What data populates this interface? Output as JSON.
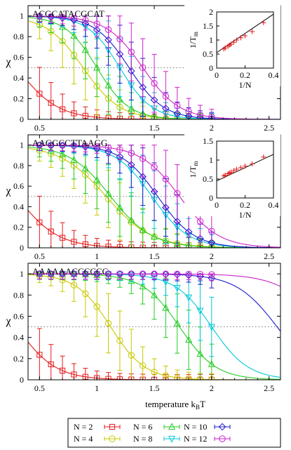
{
  "chart_data": [
    {
      "type": "line",
      "sequence": "ACGCATACGCAT",
      "ylabel": "χ",
      "xlim": [
        0.4,
        2.6
      ],
      "ylim": [
        0,
        1.1
      ],
      "xticks": [
        "0.5",
        "1",
        "1.5",
        "2",
        "2.5"
      ],
      "yticks": [
        "0",
        "0.2",
        "0.4",
        "0.6",
        "0.8",
        "1"
      ],
      "reference_line_y": 0.5,
      "series": [
        {
          "name": "N = 2",
          "Tm": 0.3,
          "width": 0.18
        },
        {
          "name": "N = 4",
          "Tm": 0.88,
          "width": 0.16
        },
        {
          "name": "N = 6",
          "Tm": 1.0,
          "width": 0.14
        },
        {
          "name": "N = 8",
          "Tm": 1.2,
          "width": 0.14
        },
        {
          "name": "N = 10",
          "Tm": 1.28,
          "width": 0.15
        },
        {
          "name": "N = 12",
          "Tm": 1.4,
          "width": 0.16
        }
      ],
      "inset": {
        "type": "scatter",
        "xlabel": "1/N",
        "ylabel": "1/T",
        "ylabel_sub": "m",
        "xlim": [
          0,
          0.4
        ],
        "ylim": [
          0,
          2
        ],
        "xticks": [
          "0",
          "0.2",
          "0.4"
        ],
        "yticks": [
          "0",
          "0.5",
          "1",
          "1.5",
          "2"
        ],
        "points": [
          [
            0.05,
            0.68
          ],
          [
            0.06,
            0.72
          ],
          [
            0.08,
            0.78
          ],
          [
            0.09,
            0.82
          ],
          [
            0.1,
            0.85
          ],
          [
            0.12,
            0.92
          ],
          [
            0.14,
            1.0
          ],
          [
            0.17,
            1.08
          ],
          [
            0.2,
            1.15
          ],
          [
            0.25,
            1.3
          ],
          [
            0.33,
            1.62
          ]
        ],
        "fit": [
          [
            0,
            0.55
          ],
          [
            0.4,
            1.92
          ]
        ]
      }
    },
    {
      "type": "line",
      "sequence": "AAGGCCTTAAGG",
      "ylabel": "χ",
      "xlim": [
        0.4,
        2.6
      ],
      "ylim": [
        0,
        1.1
      ],
      "xticks": [
        "0.5",
        "1",
        "1.5",
        "2",
        "2.5"
      ],
      "yticks": [
        "0",
        "0.2",
        "0.4",
        "0.6",
        "0.8",
        "1"
      ],
      "reference_line_y": 0.5,
      "series": [
        {
          "name": "N = 2",
          "Tm": 0.3,
          "width": 0.18
        },
        {
          "name": "N = 4",
          "Tm": 1.08,
          "width": 0.2
        },
        {
          "name": "N = 6",
          "Tm": 1.12,
          "width": 0.18
        },
        {
          "name": "N = 8",
          "Tm": 1.48,
          "width": 0.16
        },
        {
          "name": "N = 10",
          "Tm": 1.53,
          "width": 0.16
        },
        {
          "name": "N = 12",
          "Tm": 1.72,
          "width": 0.17
        }
      ],
      "inset": {
        "type": "scatter",
        "xlabel": "1/N",
        "ylabel": "1/T",
        "ylabel_sub": "m",
        "xlim": [
          0,
          0.4
        ],
        "ylim": [
          0,
          1.5
        ],
        "xticks": [
          "0",
          "0.2",
          "0.4"
        ],
        "yticks": [
          "0",
          "0.5",
          "1",
          "1.5"
        ],
        "points": [
          [
            0.05,
            0.58
          ],
          [
            0.06,
            0.6
          ],
          [
            0.08,
            0.64
          ],
          [
            0.09,
            0.66
          ],
          [
            0.1,
            0.68
          ],
          [
            0.12,
            0.72
          ],
          [
            0.14,
            0.76
          ],
          [
            0.17,
            0.8
          ],
          [
            0.2,
            0.84
          ],
          [
            0.25,
            0.9
          ],
          [
            0.33,
            1.08
          ]
        ],
        "fit": [
          [
            0,
            0.45
          ],
          [
            0.4,
            1.15
          ]
        ]
      }
    },
    {
      "type": "line",
      "sequence": "AAAAAACCCCCC",
      "ylabel": "χ",
      "xlabel": "temperature  k",
      "xlabel_sub": "B",
      "xlabel_tail": "T",
      "xlim": [
        0.4,
        2.6
      ],
      "ylim": [
        0,
        1.1
      ],
      "xticks": [
        "0.5",
        "1",
        "1.5",
        "2",
        "2.5"
      ],
      "yticks": [
        "0",
        "0.2",
        "0.4",
        "0.6",
        "0.8",
        "1"
      ],
      "reference_line_y": 0.5,
      "series": [
        {
          "name": "N = 2",
          "Tm": 0.3,
          "width": 0.17
        },
        {
          "name": "N = 4",
          "Tm": 1.12,
          "width": 0.15
        },
        {
          "name": "N = 6",
          "Tm": 1.72,
          "width": 0.16
        },
        {
          "name": "N = 8",
          "Tm": 2.0,
          "width": 0.16
        },
        {
          "name": "N = 10",
          "Tm": 2.57,
          "width": 0.18
        },
        {
          "name": "N = 12",
          "Tm": 3.0,
          "width": 0.2
        }
      ]
    }
  ],
  "legend": {
    "entries": [
      {
        "label": "N = 2",
        "color": "#e41a1c",
        "marker": "square"
      },
      {
        "label": "N = 4",
        "color": "#c8c800",
        "marker": "circle"
      },
      {
        "label": "N = 6",
        "color": "#22cc22",
        "marker": "triangle-up"
      },
      {
        "label": "N = 8",
        "color": "#00c8d8",
        "marker": "triangle-down"
      },
      {
        "label": "N = 10",
        "color": "#1a1acc",
        "marker": "diamond"
      },
      {
        "label": "N = 12",
        "color": "#cc22cc",
        "marker": "circle"
      }
    ]
  },
  "colors": {
    "N = 2": "#e41a1c",
    "N = 4": "#c8c800",
    "N = 6": "#22cc22",
    "N = 8": "#00c8d8",
    "N = 10": "#1a1acc",
    "N = 12": "#cc22cc",
    "inset_points": "#e41a1c",
    "inset_fit": "#000000"
  }
}
